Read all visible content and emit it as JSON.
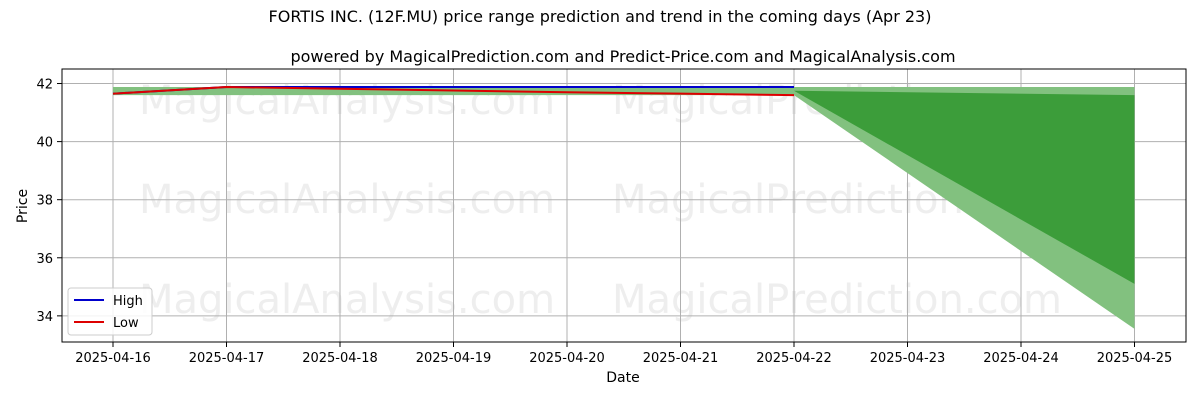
{
  "chart_data": {
    "type": "line",
    "title": "FORTIS INC. (12F.MU) price range prediction and trend in the coming days (Apr 23)",
    "subtitle": "powered by MagicalPrediction.com and Predict-Price.com and MagicalAnalysis.com",
    "xlabel": "Date",
    "ylabel": "Price",
    "x_ticks": [
      "2025-04-16",
      "2025-04-17",
      "2025-04-18",
      "2025-04-19",
      "2025-04-20",
      "2025-04-21",
      "2025-04-22",
      "2025-04-23",
      "2025-04-24",
      "2025-04-25"
    ],
    "y_ticks": [
      34,
      36,
      38,
      40,
      42
    ],
    "ylim": [
      33.1,
      42.5
    ],
    "grid": true,
    "legend_position": "lower-left",
    "series": [
      {
        "name": "High",
        "color": "#0000cc",
        "points": [
          {
            "x": "2025-04-16",
            "y": 41.65
          },
          {
            "x": "2025-04-17",
            "y": 41.88
          },
          {
            "x": "2025-04-18",
            "y": 41.88
          },
          {
            "x": "2025-04-19",
            "y": 41.88
          },
          {
            "x": "2025-04-20",
            "y": 41.88
          },
          {
            "x": "2025-04-21",
            "y": 41.88
          },
          {
            "x": "2025-04-22",
            "y": 41.88
          }
        ]
      },
      {
        "name": "Low",
        "color": "#dd0000",
        "points": [
          {
            "x": "2025-04-16",
            "y": 41.65
          },
          {
            "x": "2025-04-17",
            "y": 41.88
          },
          {
            "x": "2025-04-18",
            "y": 41.82
          },
          {
            "x": "2025-04-19",
            "y": 41.76
          },
          {
            "x": "2025-04-20",
            "y": 41.7
          },
          {
            "x": "2025-04-21",
            "y": 41.65
          },
          {
            "x": "2025-04-22",
            "y": 41.6
          }
        ]
      }
    ],
    "bands": [
      {
        "color": "#82c17f",
        "upper": [
          {
            "x": "2025-04-16",
            "y": 41.88
          },
          {
            "x": "2025-04-22",
            "y": 41.88
          },
          {
            "x": "2025-04-25",
            "y": 41.88
          }
        ],
        "lower": [
          {
            "x": "2025-04-16",
            "y": 41.6
          },
          {
            "x": "2025-04-22",
            "y": 41.6
          },
          {
            "x": "2025-04-25",
            "y": 33.55
          }
        ]
      },
      {
        "color": "#3c9d3a",
        "upper": [
          {
            "x": "2025-04-22",
            "y": 41.75
          },
          {
            "x": "2025-04-25",
            "y": 41.6
          }
        ],
        "lower": [
          {
            "x": "2025-04-22",
            "y": 41.75
          },
          {
            "x": "2025-04-25",
            "y": 35.1
          }
        ]
      }
    ],
    "watermarks": [
      "MagicalAnalysis.com",
      "MagicalPrediction.com"
    ]
  }
}
